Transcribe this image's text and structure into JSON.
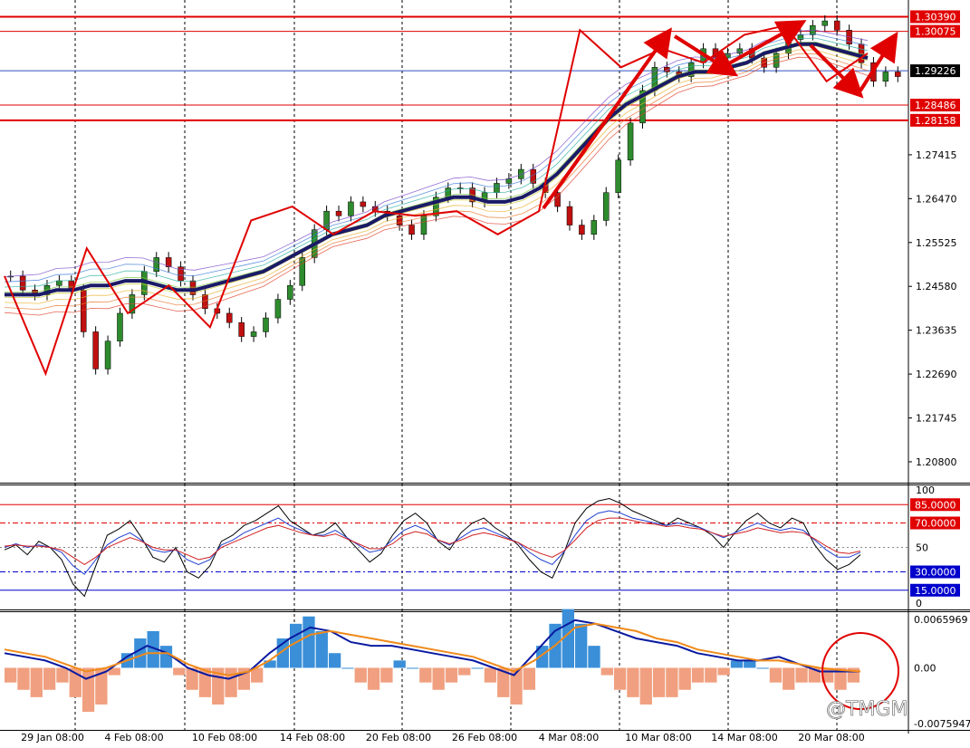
{
  "chart_data": [
    {
      "type": "candlestick",
      "name_panel": "price",
      "ylim": [
        1.2035,
        1.3075
      ],
      "yticks": [
        "1.20800",
        "1.21745",
        "1.22690",
        "1.23635",
        "1.24580",
        "1.25525",
        "1.26470",
        "1.27415"
      ],
      "xticks": [
        "29 Jan 08:00",
        "4 Feb 08:00",
        "10 Feb 08:00",
        "14 Feb 08:00",
        "20 Feb 08:00",
        "26 Feb 08:00",
        "4 Mar 08:00",
        "10 Mar 08:00",
        "14 Mar 08:00",
        "20 Mar 08:00"
      ],
      "levels": [
        {
          "label": "1.30390",
          "value": 1.3039,
          "type": "resistance"
        },
        {
          "label": "1.30075",
          "value": 1.30075,
          "type": "resistance"
        },
        {
          "label": "1.28486",
          "value": 1.28486,
          "type": "support"
        },
        {
          "label": "1.28158",
          "value": 1.28158,
          "type": "support"
        }
      ],
      "current_price": {
        "label": "1.29226",
        "value": 1.29226
      },
      "close_path": [
        1.248,
        1.245,
        1.244,
        1.246,
        1.247,
        1.245,
        1.236,
        1.228,
        1.234,
        1.24,
        1.244,
        1.249,
        1.252,
        1.25,
        1.247,
        1.244,
        1.241,
        1.24,
        1.238,
        1.235,
        1.236,
        1.239,
        1.243,
        1.246,
        1.252,
        1.258,
        1.262,
        1.261,
        1.264,
        1.263,
        1.262,
        1.261,
        1.259,
        1.257,
        1.261,
        1.265,
        1.267,
        1.267,
        1.264,
        1.266,
        1.268,
        1.269,
        1.271,
        1.268,
        1.266,
        1.263,
        1.259,
        1.257,
        1.26,
        1.266,
        1.273,
        1.281,
        1.288,
        1.293,
        1.292,
        1.291,
        1.294,
        1.297,
        1.295,
        1.296,
        1.297,
        1.295,
        1.293,
        1.296,
        1.299,
        1.3,
        1.302,
        1.303,
        1.301,
        1.298,
        1.294,
        1.29,
        1.292,
        1.291
      ],
      "ma_path": [
        1.244,
        1.244,
        1.244,
        1.245,
        1.245,
        1.246,
        1.246,
        1.247,
        1.247,
        1.246,
        1.245,
        1.245,
        1.246,
        1.247,
        1.248,
        1.249,
        1.251,
        1.253,
        1.255,
        1.257,
        1.258,
        1.259,
        1.261,
        1.262,
        1.263,
        1.264,
        1.265,
        1.265,
        1.264,
        1.264,
        1.265,
        1.267,
        1.27,
        1.274,
        1.278,
        1.282,
        1.285,
        1.287,
        1.289,
        1.291,
        1.292,
        1.292,
        1.293,
        1.294,
        1.296,
        1.297,
        1.298,
        1.298,
        1.297,
        1.296,
        1.295
      ],
      "zigzag": [
        1.248,
        1.227,
        1.254,
        1.24,
        1.246,
        1.237,
        1.26,
        1.263,
        1.257,
        1.262,
        1.261,
        1.262,
        1.257,
        1.262,
        1.301,
        1.293,
        1.297,
        1.294,
        1.3,
        1.302,
        1.29,
        1.296
      ],
      "arrows": [
        "up",
        "down",
        "up",
        "down",
        "up"
      ]
    },
    {
      "type": "line",
      "name_panel": "oscillator",
      "ylim": [
        0,
        100
      ],
      "yticks": [
        "100",
        "50",
        "0"
      ],
      "levels": [
        {
          "label": "85.0000",
          "value": 85
        },
        {
          "label": "70.0000",
          "value": 70
        },
        {
          "label": "30.0000",
          "value": 30
        },
        {
          "label": "15.0000",
          "value": 15
        }
      ],
      "series": [
        {
          "values": [
            48,
            52,
            44,
            55,
            50,
            40,
            20,
            10,
            35,
            60,
            65,
            72,
            58,
            42,
            38,
            50,
            30,
            25,
            35,
            55,
            60,
            68,
            72,
            78,
            84,
            72,
            66,
            60,
            63,
            70,
            58,
            48,
            38,
            45,
            60,
            72,
            78,
            70,
            55,
            48,
            62,
            70,
            74,
            66,
            60,
            52,
            40,
            30,
            25,
            45,
            70,
            82,
            88,
            90,
            86,
            80,
            76,
            72,
            68,
            74,
            70,
            66,
            60,
            50,
            62,
            72,
            78,
            70,
            66,
            74,
            70,
            52,
            40,
            32,
            36,
            44
          ]
        },
        {
          "values": [
            50,
            53,
            50,
            52,
            50,
            46,
            35,
            28,
            40,
            52,
            58,
            62,
            56,
            48,
            46,
            48,
            40,
            36,
            40,
            52,
            56,
            62,
            66,
            70,
            74,
            68,
            64,
            60,
            60,
            64,
            58,
            52,
            46,
            48,
            56,
            64,
            68,
            64,
            56,
            52,
            58,
            64,
            66,
            62,
            58,
            54,
            46,
            40,
            36,
            46,
            60,
            72,
            78,
            80,
            78,
            74,
            72,
            70,
            68,
            70,
            68,
            66,
            62,
            58,
            62,
            66,
            70,
            66,
            64,
            66,
            64,
            56,
            48,
            42,
            42,
            46
          ]
        },
        {
          "values": [
            51,
            52,
            51,
            51,
            50,
            48,
            42,
            36,
            42,
            50,
            54,
            58,
            55,
            50,
            48,
            48,
            44,
            40,
            42,
            50,
            54,
            58,
            62,
            66,
            68,
            65,
            62,
            60,
            59,
            61,
            57,
            53,
            49,
            49,
            53,
            60,
            63,
            61,
            56,
            53,
            56,
            60,
            62,
            60,
            57,
            54,
            49,
            45,
            42,
            47,
            56,
            66,
            72,
            74,
            74,
            72,
            70,
            69,
            67,
            68,
            66,
            65,
            62,
            59,
            61,
            63,
            66,
            64,
            62,
            63,
            62,
            57,
            51,
            46,
            45,
            47
          ]
        }
      ]
    },
    {
      "type": "histogram",
      "name_panel": "macd",
      "ylim": [
        -0.0075947,
        0.0065969
      ],
      "yticks": [
        "0.0065969",
        "0.00",
        "-0.0075947"
      ],
      "histogram": [
        -0.002,
        -0.003,
        -0.004,
        -0.003,
        -0.002,
        -0.004,
        -0.006,
        -0.005,
        -0.001,
        0.002,
        0.004,
        0.005,
        0.003,
        -0.001,
        -0.003,
        -0.004,
        -0.005,
        -0.004,
        -0.003,
        -0.002,
        0.001,
        0.004,
        0.006,
        0.007,
        0.005,
        0.002,
        0.0,
        -0.002,
        -0.003,
        -0.002,
        0.001,
        0.0,
        -0.002,
        -0.003,
        -0.002,
        -0.001,
        0.0,
        -0.002,
        -0.004,
        -0.005,
        -0.003,
        0.003,
        0.006,
        0.008,
        0.006,
        0.003,
        -0.001,
        -0.003,
        -0.004,
        -0.005,
        -0.004,
        -0.004,
        -0.003,
        -0.002,
        -0.002,
        -0.001,
        0.001,
        0.001,
        0.0,
        -0.002,
        -0.003,
        -0.002,
        -0.002,
        -0.002,
        -0.003,
        -0.002
      ],
      "series": [
        {
          "values": [
            0.002,
            0.0015,
            0.001,
            0.0,
            -0.0015,
            -0.0005,
            0.0015,
            0.003,
            0.002,
            0.0,
            -0.001,
            -0.0015,
            -0.0005,
            0.002,
            0.004,
            0.0055,
            0.005,
            0.0035,
            0.003,
            0.003,
            0.0025,
            0.002,
            0.0015,
            0.001,
            0.0,
            -0.001,
            0.002,
            0.005,
            0.0065,
            0.006,
            0.005,
            0.004,
            0.0035,
            0.003,
            0.002,
            0.0015,
            0.001,
            0.001,
            0.0015,
            0.0005,
            -0.0005,
            -0.0005,
            -0.0005
          ]
        },
        {
          "values": [
            0.0025,
            0.002,
            0.0015,
            0.0005,
            -0.0005,
            0.0,
            0.001,
            0.002,
            0.002,
            0.0005,
            -0.0005,
            -0.001,
            -0.0005,
            0.001,
            0.003,
            0.0045,
            0.005,
            0.0045,
            0.004,
            0.0035,
            0.003,
            0.0025,
            0.002,
            0.0015,
            0.0005,
            -0.0005,
            0.001,
            0.003,
            0.0055,
            0.006,
            0.0055,
            0.005,
            0.004,
            0.0035,
            0.0025,
            0.002,
            0.0015,
            0.001,
            0.001,
            0.0005,
            0.0,
            -0.0003,
            -0.0005
          ]
        }
      ]
    }
  ],
  "watermark": "@TMGM",
  "colors": {
    "resistance": "#e00000",
    "support": "#e00000",
    "current": "#000000",
    "ma": "#1a1a66",
    "zigzag": "#e00000",
    "blue_level": "#0000cc",
    "hist_pos": "#3a8fd8",
    "hist_neg": "#f0a080",
    "macd": "#0a1aa0",
    "signal": "#f08a1a"
  }
}
